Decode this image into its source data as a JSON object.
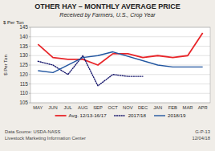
{
  "chart_data": {
    "type": "line",
    "title": "OTHER HAY – MONTHLY AVERAGE PRICE",
    "subtitle": "Received by Farmers, U.S., Crop Year",
    "y_label": "$ Per Ton",
    "annotations": [
      "Data Source:  USDA-NASS",
      "Livestock Marketing Information Center",
      "G-P-13",
      "12/04/18"
    ],
    "categories": [
      "MAY",
      "JUN",
      "JUL",
      "AUG",
      "SEP",
      "OCT",
      "NOV",
      "DEC",
      "JAN",
      "FEB",
      "MAR",
      "APR"
    ],
    "series": [
      {
        "name": "Avg. 12/13-16/17",
        "color": "#e8262a",
        "line_style": "solid",
        "values": [
          136,
          129,
          128,
          128,
          125,
          131,
          131,
          129,
          130,
          129,
          130,
          142
        ]
      },
      {
        "name": "2017/18",
        "color": "#1a1a6e",
        "line_style": "dotted",
        "values": [
          127,
          125,
          120,
          130,
          114,
          120,
          119,
          119,
          null,
          null,
          null,
          null
        ]
      },
      {
        "name": "2018/19",
        "color": "#2155a0",
        "line_style": "solid",
        "x": [
          "MAY",
          "JUN",
          "AUG",
          "SEP",
          "OCT",
          "JAN",
          "FEB",
          "MAR",
          "APR"
        ],
        "values": [
          122,
          121,
          129,
          130,
          132,
          125,
          124,
          124,
          124
        ]
      }
    ],
    "ylim": [
      105,
      145
    ],
    "yticks": [
      105,
      110,
      115,
      120,
      125,
      130,
      135,
      140,
      145
    ],
    "grid": true,
    "legend": "bottom"
  }
}
